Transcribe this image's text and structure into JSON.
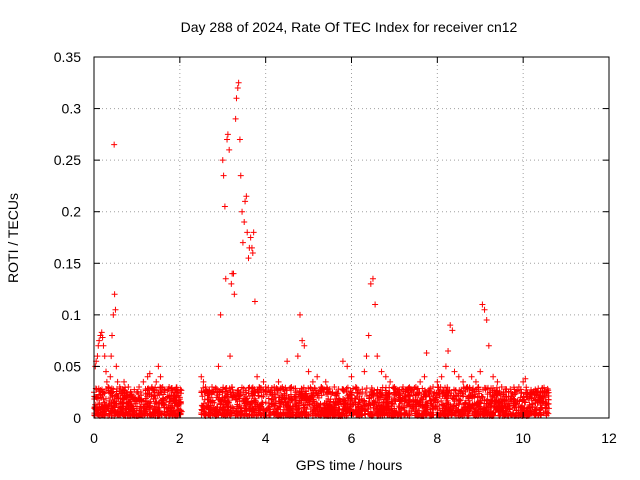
{
  "chart_data": {
    "type": "scatter",
    "title": "Day 288 of 2024, Rate Of TEC Index for receiver cn12",
    "xlabel": "GPS time / hours",
    "ylabel": "ROTI / TECUs",
    "xlim": [
      0,
      12
    ],
    "ylim": [
      0,
      0.35
    ],
    "x_ticks": [
      0,
      2,
      4,
      6,
      8,
      10,
      12
    ],
    "y_ticks": [
      0,
      0.05,
      0.1,
      0.15,
      0.2,
      0.25,
      0.3,
      0.35
    ],
    "x_tick_labels": [
      "0",
      "2",
      "4",
      "6",
      "8",
      "10",
      "12"
    ],
    "y_tick_labels": [
      "0",
      "0.05",
      "0.1",
      "0.15",
      "0.2",
      "0.25",
      "0.3",
      "0.35"
    ],
    "grid": true,
    "marker": "+",
    "color": "#ff0000",
    "series": [
      {
        "name": "ROTI",
        "x": [
          0.0,
          0.03,
          0.05,
          0.08,
          0.1,
          0.12,
          0.15,
          0.18,
          0.2,
          0.22,
          0.25,
          0.28,
          0.3,
          0.33,
          0.35,
          0.38,
          0.4,
          0.42,
          0.45,
          0.47,
          0.48,
          0.5,
          0.52,
          0.55,
          0.6,
          0.65,
          0.7,
          0.75,
          0.8,
          0.85,
          0.9,
          0.95,
          1.0,
          1.05,
          1.1,
          1.15,
          1.2,
          1.25,
          1.3,
          1.35,
          1.4,
          1.45,
          1.5,
          1.55,
          1.6,
          1.65,
          1.7,
          1.75,
          1.8,
          1.85,
          1.9,
          1.95,
          2.0,
          2.02,
          2.5,
          2.55,
          2.6,
          2.65,
          2.7,
          2.75,
          2.8,
          2.85,
          2.9,
          2.95,
          3.0,
          3.02,
          3.05,
          3.07,
          3.1,
          3.12,
          3.15,
          3.17,
          3.2,
          3.22,
          3.25,
          3.27,
          3.3,
          3.32,
          3.35,
          3.37,
          3.4,
          3.42,
          3.45,
          3.47,
          3.5,
          3.52,
          3.55,
          3.57,
          3.6,
          3.62,
          3.65,
          3.68,
          3.7,
          3.72,
          3.75,
          3.8,
          3.85,
          3.9,
          3.95,
          4.0,
          4.1,
          4.2,
          4.3,
          4.4,
          4.5,
          4.6,
          4.7,
          4.75,
          4.8,
          4.85,
          4.9,
          5.0,
          5.1,
          5.2,
          5.3,
          5.4,
          5.5,
          5.6,
          5.7,
          5.8,
          5.9,
          6.0,
          6.1,
          6.2,
          6.3,
          6.35,
          6.4,
          6.45,
          6.5,
          6.55,
          6.6,
          6.7,
          6.8,
          6.9,
          7.0,
          7.1,
          7.2,
          7.3,
          7.4,
          7.5,
          7.6,
          7.7,
          7.75,
          7.8,
          7.9,
          8.0,
          8.1,
          8.2,
          8.25,
          8.3,
          8.35,
          8.4,
          8.5,
          8.6,
          8.7,
          8.8,
          8.9,
          9.0,
          9.05,
          9.1,
          9.15,
          9.2,
          9.3,
          9.4,
          9.5,
          9.6,
          9.7,
          9.8,
          9.9,
          10.0,
          10.05,
          10.1,
          10.2,
          10.3,
          10.4,
          10.5,
          10.55
        ],
        "y": [
          0.025,
          0.05,
          0.055,
          0.06,
          0.07,
          0.075,
          0.08,
          0.083,
          0.078,
          0.07,
          0.06,
          0.045,
          0.035,
          0.03,
          0.025,
          0.04,
          0.06,
          0.08,
          0.1,
          0.265,
          0.12,
          0.105,
          0.05,
          0.035,
          0.03,
          0.025,
          0.035,
          0.02,
          0.03,
          0.025,
          0.02,
          0.018,
          0.025,
          0.03,
          0.022,
          0.035,
          0.028,
          0.04,
          0.043,
          0.03,
          0.025,
          0.035,
          0.05,
          0.04,
          0.03,
          0.025,
          0.02,
          0.03,
          0.022,
          0.018,
          0.02,
          0.025,
          0.02,
          0.015,
          0.04,
          0.035,
          0.03,
          0.025,
          0.02,
          0.03,
          0.025,
          0.02,
          0.05,
          0.1,
          0.25,
          0.235,
          0.205,
          0.135,
          0.27,
          0.275,
          0.26,
          0.06,
          0.13,
          0.14,
          0.14,
          0.12,
          0.29,
          0.31,
          0.32,
          0.325,
          0.27,
          0.235,
          0.2,
          0.17,
          0.19,
          0.21,
          0.215,
          0.18,
          0.155,
          0.165,
          0.175,
          0.165,
          0.16,
          0.18,
          0.113,
          0.04,
          0.03,
          0.025,
          0.035,
          0.03,
          0.025,
          0.03,
          0.035,
          0.028,
          0.055,
          0.03,
          0.025,
          0.06,
          0.1,
          0.075,
          0.07,
          0.045,
          0.035,
          0.04,
          0.03,
          0.035,
          0.025,
          0.03,
          0.028,
          0.055,
          0.05,
          0.04,
          0.03,
          0.025,
          0.045,
          0.06,
          0.08,
          0.13,
          0.135,
          0.11,
          0.06,
          0.045,
          0.04,
          0.035,
          0.03,
          0.025,
          0.03,
          0.028,
          0.025,
          0.03,
          0.035,
          0.04,
          0.063,
          0.025,
          0.03,
          0.035,
          0.04,
          0.05,
          0.065,
          0.09,
          0.085,
          0.045,
          0.04,
          0.035,
          0.03,
          0.04,
          0.035,
          0.045,
          0.11,
          0.105,
          0.095,
          0.07,
          0.04,
          0.035,
          0.03,
          0.025,
          0.028,
          0.025,
          0.03,
          0.035,
          0.038,
          0.025,
          0.02,
          0.025,
          0.02,
          0.022,
          0.025
        ]
      }
    ],
    "background_band": {
      "segments": [
        [
          0.0,
          2.05
        ],
        [
          2.5,
          10.6
        ]
      ],
      "y_min": 0.002,
      "y_max": 0.03
    }
  }
}
